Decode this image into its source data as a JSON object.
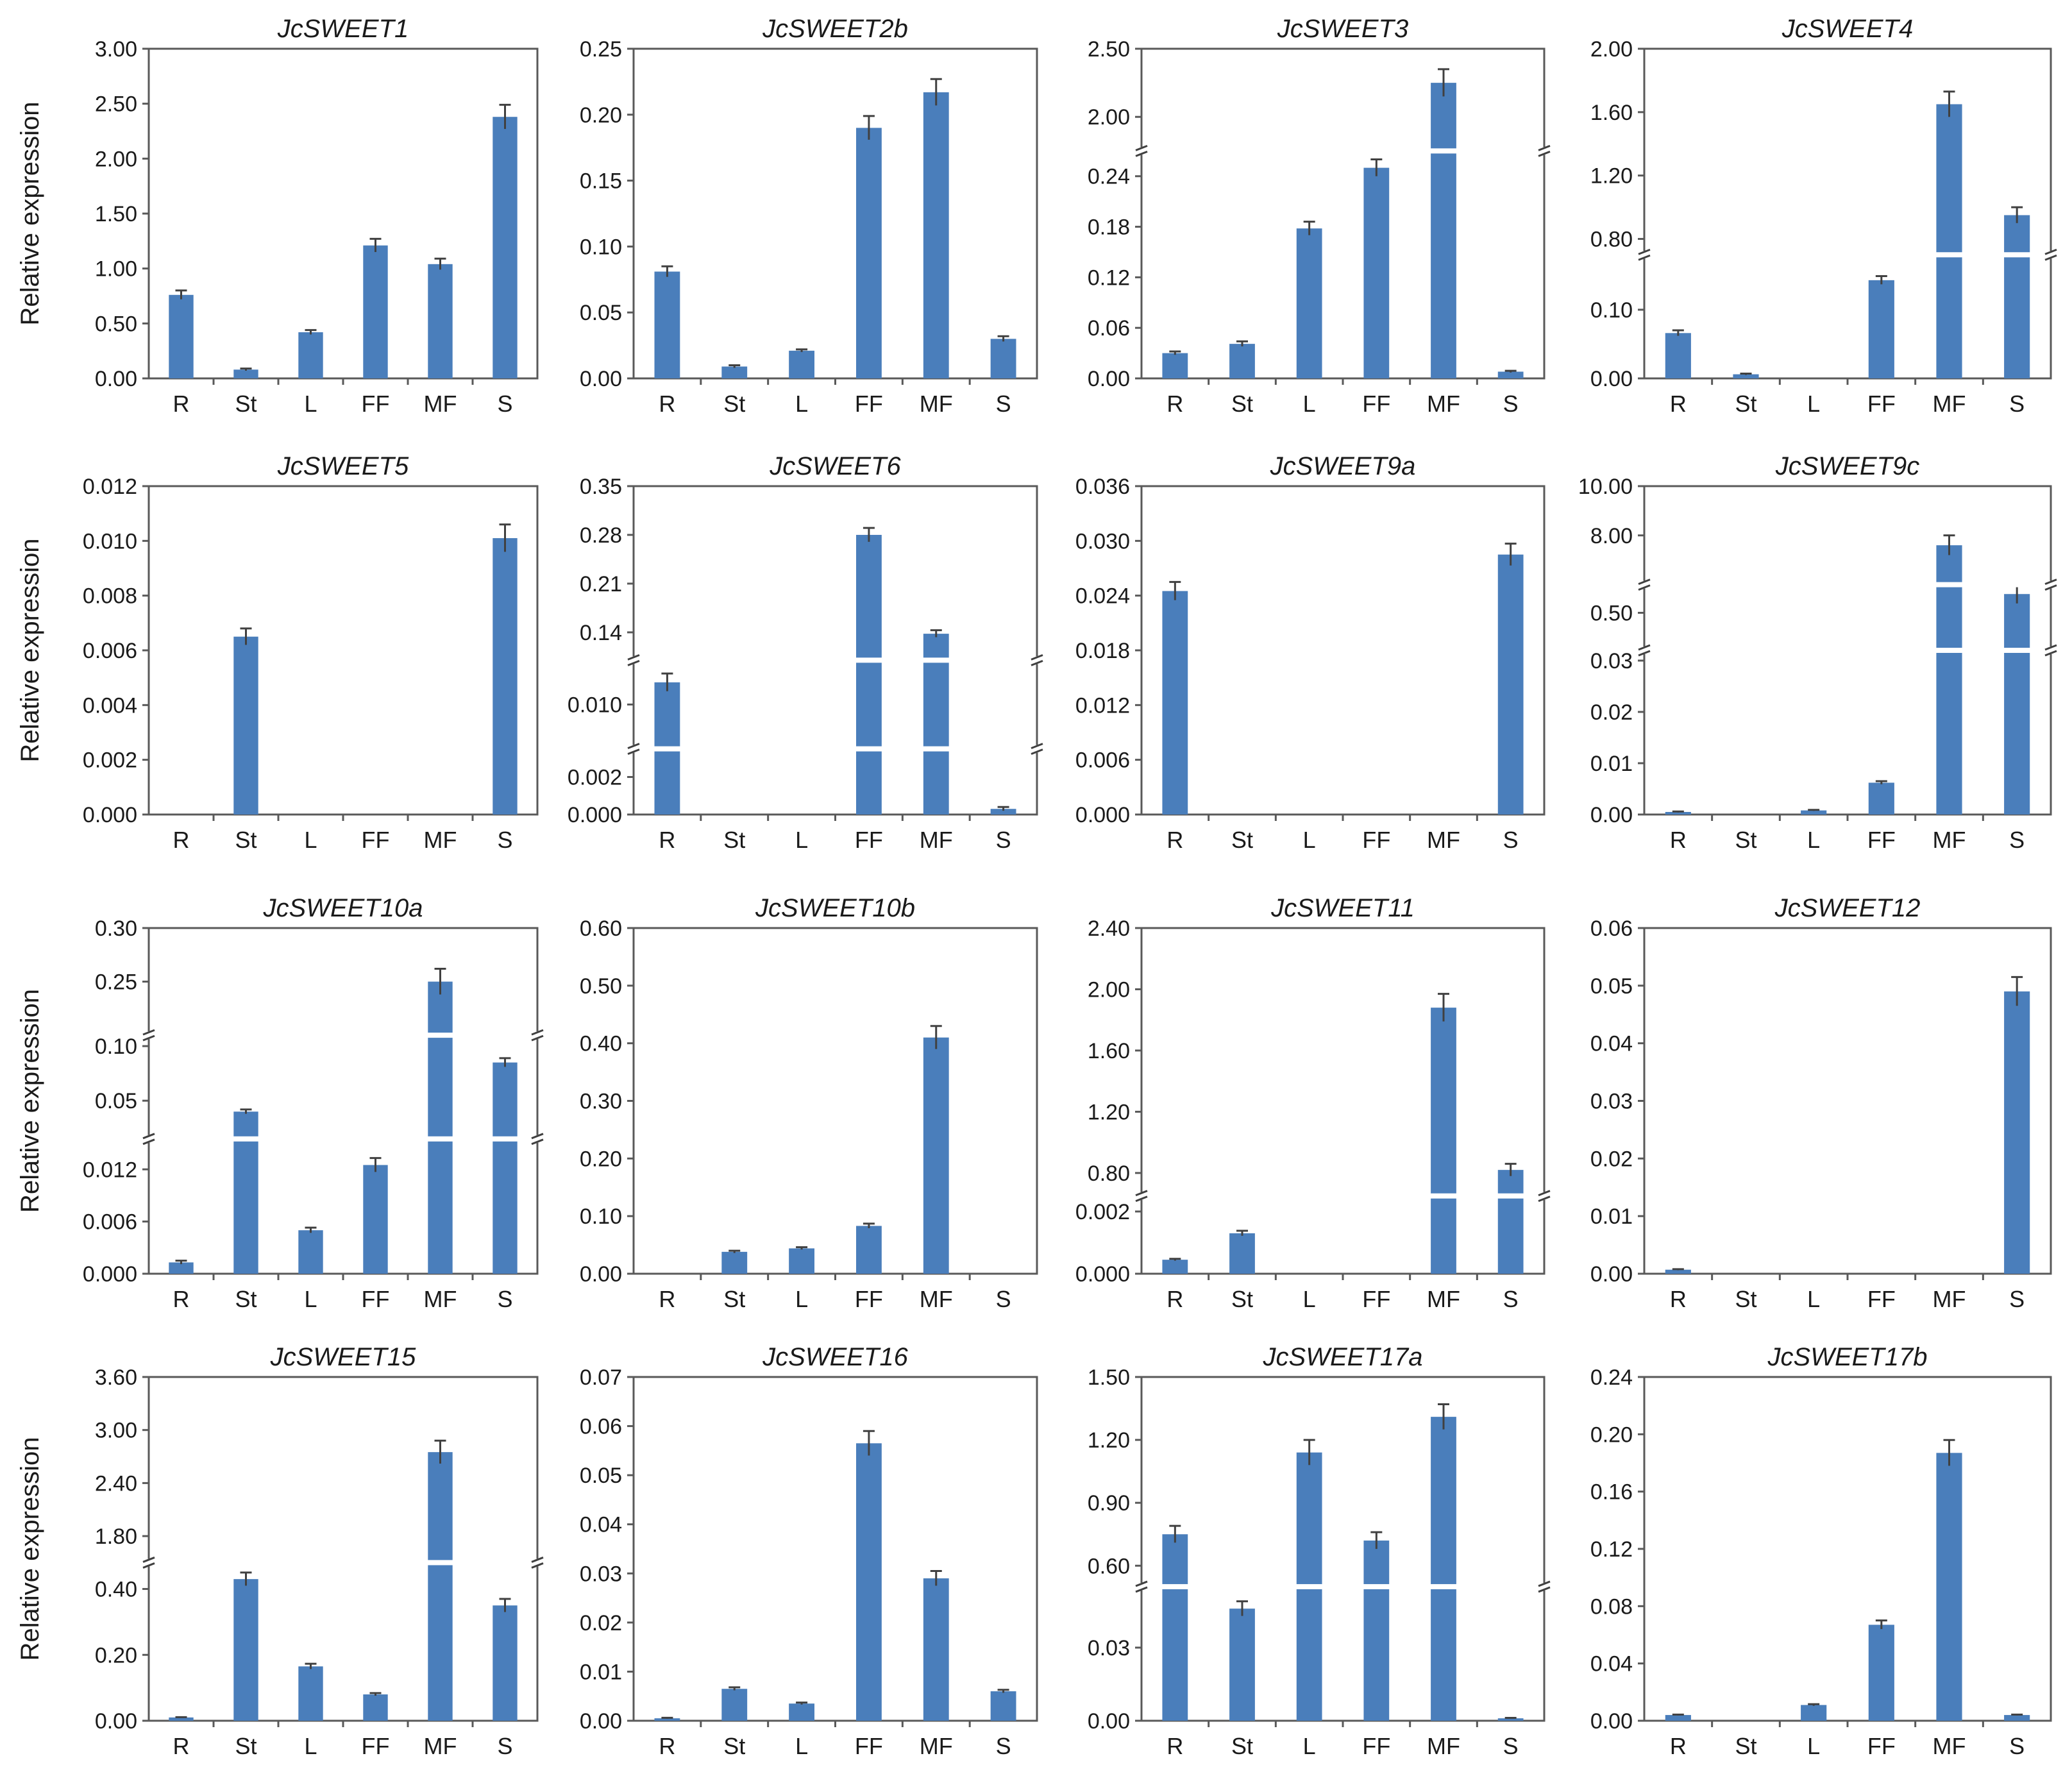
{
  "ylabel": "Relative expression",
  "colors": {
    "bar": "#4a7ebb",
    "axis": "#595959",
    "error": "#404040"
  },
  "chart_data": [
    {
      "type": "bar",
      "title": "JcSWEET1",
      "categories": [
        "R",
        "St",
        "L",
        "FF",
        "MF",
        "S"
      ],
      "ylim": [
        0,
        3
      ],
      "yticks": [
        {
          "v": 0,
          "t": "0.00"
        },
        {
          "v": 0.5,
          "t": "0.50"
        },
        {
          "v": 1,
          "t": "1.00"
        },
        {
          "v": 1.5,
          "t": "1.50"
        },
        {
          "v": 2,
          "t": "2.00"
        },
        {
          "v": 2.5,
          "t": "2.50"
        },
        {
          "v": 3,
          "t": "3.00"
        }
      ],
      "values": [
        0.76,
        0.08,
        0.42,
        1.21,
        1.04,
        2.38
      ],
      "errors": [
        0.04,
        0.01,
        0.02,
        0.06,
        0.05,
        0.11
      ],
      "segments": null
    },
    {
      "type": "bar",
      "title": "JcSWEET2b",
      "categories": [
        "R",
        "St",
        "L",
        "FF",
        "MF",
        "S"
      ],
      "ylim": [
        0,
        0.25
      ],
      "yticks": [
        {
          "v": 0,
          "t": "0.00"
        },
        {
          "v": 0.05,
          "t": "0.05"
        },
        {
          "v": 0.1,
          "t": "0.10"
        },
        {
          "v": 0.15,
          "t": "0.15"
        },
        {
          "v": 0.2,
          "t": "0.20"
        },
        {
          "v": 0.25,
          "t": "0.25"
        }
      ],
      "values": [
        0.081,
        0.009,
        0.021,
        0.19,
        0.217,
        0.03
      ],
      "errors": [
        0.004,
        0.001,
        0.001,
        0.009,
        0.01,
        0.002
      ],
      "segments": null
    },
    {
      "type": "bar",
      "title": "JcSWEET3",
      "categories": [
        "R",
        "St",
        "L",
        "FF",
        "MF",
        "S"
      ],
      "yticks": [
        {
          "v": 0,
          "t": "0.00"
        },
        {
          "v": 0.06,
          "t": "0.06"
        },
        {
          "v": 0.12,
          "t": "0.12"
        },
        {
          "v": 0.18,
          "t": "0.18"
        },
        {
          "v": 0.24,
          "t": "0.24"
        },
        {
          "v": 2,
          "t": "2.00"
        },
        {
          "v": 2.5,
          "t": "2.50"
        }
      ],
      "values": [
        0.03,
        0.041,
        0.178,
        0.25,
        2.25,
        0.008
      ],
      "errors": [
        0.002,
        0.003,
        0.008,
        0.01,
        0.1,
        0.001
      ],
      "segments": [
        {
          "lo": 0,
          "hi": 0.27,
          "f0": 0,
          "f1": 0.69
        },
        {
          "lo": 1.75,
          "hi": 2.5,
          "f0": 0.69,
          "f1": 1
        }
      ]
    },
    {
      "type": "bar",
      "title": "JcSWEET4",
      "categories": [
        "R",
        "St",
        "L",
        "FF",
        "MF",
        "S"
      ],
      "yticks": [
        {
          "v": 0,
          "t": "0.00"
        },
        {
          "v": 0.1,
          "t": "0.10"
        },
        {
          "v": 0.8,
          "t": "0.80"
        },
        {
          "v": 1.2,
          "t": "1.20"
        },
        {
          "v": 1.6,
          "t": "1.60"
        },
        {
          "v": 2,
          "t": "2.00"
        }
      ],
      "values": [
        0.066,
        0.006,
        0,
        0.143,
        1.65,
        0.95
      ],
      "errors": [
        0.004,
        0.001,
        0,
        0.006,
        0.08,
        0.05
      ],
      "segments": [
        {
          "lo": 0,
          "hi": 0.18,
          "f0": 0,
          "f1": 0.375
        },
        {
          "lo": 0.7,
          "hi": 2,
          "f0": 0.375,
          "f1": 1
        }
      ]
    },
    {
      "type": "bar",
      "title": "JcSWEET5",
      "categories": [
        "R",
        "St",
        "L",
        "FF",
        "MF",
        "S"
      ],
      "ylim": [
        0,
        0.012
      ],
      "yticks": [
        {
          "v": 0,
          "t": "0.000"
        },
        {
          "v": 0.002,
          "t": "0.002"
        },
        {
          "v": 0.004,
          "t": "0.004"
        },
        {
          "v": 0.006,
          "t": "0.006"
        },
        {
          "v": 0.008,
          "t": "0.008"
        },
        {
          "v": 0.01,
          "t": "0.010"
        },
        {
          "v": 0.012,
          "t": "0.012"
        }
      ],
      "values": [
        0,
        0.0065,
        0,
        0,
        0,
        0.0101
      ],
      "errors": [
        0,
        0.0003,
        0,
        0,
        0,
        0.0005
      ],
      "segments": null
    },
    {
      "type": "bar",
      "title": "JcSWEET6",
      "categories": [
        "R",
        "St",
        "L",
        "FF",
        "MF",
        "S"
      ],
      "yticks": [
        {
          "v": 0,
          "t": "0.000"
        },
        {
          "v": 0.002,
          "t": "0.002"
        },
        {
          "v": 0.01,
          "t": "0.010"
        },
        {
          "v": 0.14,
          "t": "0.14"
        },
        {
          "v": 0.21,
          "t": "0.21"
        },
        {
          "v": 0.28,
          "t": "0.28"
        },
        {
          "v": 0.35,
          "t": "0.35"
        }
      ],
      "values": [
        0.012,
        0,
        0,
        0.28,
        0.138,
        0.0003
      ],
      "errors": [
        0.0008,
        0,
        0,
        0.01,
        0.005,
        0.0001
      ],
      "segments": [
        {
          "lo": 0,
          "hi": 0.0035,
          "f0": 0,
          "f1": 0.2
        },
        {
          "lo": 0.006,
          "hi": 0.014,
          "f0": 0.2,
          "f1": 0.47
        },
        {
          "lo": 0.1,
          "hi": 0.35,
          "f0": 0.47,
          "f1": 1
        }
      ]
    },
    {
      "type": "bar",
      "title": "JcSWEET9a",
      "categories": [
        "R",
        "St",
        "L",
        "FF",
        "MF",
        "S"
      ],
      "ylim": [
        0,
        0.036
      ],
      "yticks": [
        {
          "v": 0,
          "t": "0.000"
        },
        {
          "v": 0.006,
          "t": "0.006"
        },
        {
          "v": 0.012,
          "t": "0.012"
        },
        {
          "v": 0.018,
          "t": "0.018"
        },
        {
          "v": 0.024,
          "t": "0.024"
        },
        {
          "v": 0.03,
          "t": "0.030"
        },
        {
          "v": 0.036,
          "t": "0.036"
        }
      ],
      "values": [
        0.0245,
        0,
        0,
        0,
        0,
        0.0285
      ],
      "errors": [
        0.001,
        0,
        0,
        0,
        0,
        0.0012
      ],
      "segments": null
    },
    {
      "type": "bar",
      "title": "JcSWEET9c",
      "categories": [
        "R",
        "St",
        "L",
        "FF",
        "MF",
        "S"
      ],
      "yticks": [
        {
          "v": 0,
          "t": "0.00"
        },
        {
          "v": 0.01,
          "t": "0.01"
        },
        {
          "v": 0.02,
          "t": "0.02"
        },
        {
          "v": 0.03,
          "t": "0.03"
        },
        {
          "v": 0.5,
          "t": "0.50"
        },
        {
          "v": 8,
          "t": "8.00"
        },
        {
          "v": 10,
          "t": "10.00"
        }
      ],
      "values": [
        0.0005,
        0,
        0.0008,
        0.0062,
        7.6,
        0.6
      ],
      "errors": [
        0.0001,
        0,
        0.0001,
        0.0003,
        0.4,
        0.05
      ],
      "segments": [
        {
          "lo": 0,
          "hi": 0.032,
          "f0": 0,
          "f1": 0.5
        },
        {
          "lo": 0.3,
          "hi": 0.65,
          "f0": 0.5,
          "f1": 0.7
        },
        {
          "lo": 6,
          "hi": 10,
          "f0": 0.7,
          "f1": 1
        }
      ]
    },
    {
      "type": "bar",
      "title": "JcSWEET10a",
      "categories": [
        "R",
        "St",
        "L",
        "FF",
        "MF",
        "S"
      ],
      "yticks": [
        {
          "v": 0,
          "t": "0.000"
        },
        {
          "v": 0.006,
          "t": "0.006"
        },
        {
          "v": 0.012,
          "t": "0.012"
        },
        {
          "v": 0.05,
          "t": "0.05"
        },
        {
          "v": 0.1,
          "t": "0.10"
        },
        {
          "v": 0.25,
          "t": "0.25"
        },
        {
          "v": 0.3,
          "t": "0.30"
        }
      ],
      "values": [
        0.0013,
        0.04,
        0.005,
        0.0125,
        0.25,
        0.085
      ],
      "errors": [
        0.0002,
        0.002,
        0.0003,
        0.0008,
        0.012,
        0.004
      ],
      "segments": [
        {
          "lo": 0,
          "hi": 0.0155,
          "f0": 0,
          "f1": 0.39
        },
        {
          "lo": 0.015,
          "hi": 0.11,
          "f0": 0.39,
          "f1": 0.69
        },
        {
          "lo": 0.2,
          "hi": 0.3,
          "f0": 0.69,
          "f1": 1
        }
      ]
    },
    {
      "type": "bar",
      "title": "JcSWEET10b",
      "categories": [
        "R",
        "St",
        "L",
        "FF",
        "MF",
        "S"
      ],
      "ylim": [
        0,
        0.6
      ],
      "yticks": [
        {
          "v": 0,
          "t": "0.00"
        },
        {
          "v": 0.1,
          "t": "0.10"
        },
        {
          "v": 0.2,
          "t": "0.20"
        },
        {
          "v": 0.3,
          "t": "0.30"
        },
        {
          "v": 0.4,
          "t": "0.40"
        },
        {
          "v": 0.5,
          "t": "0.50"
        },
        {
          "v": 0.6,
          "t": "0.60"
        }
      ],
      "values": [
        0,
        0.038,
        0.044,
        0.083,
        0.41,
        0
      ],
      "errors": [
        0,
        0.002,
        0.002,
        0.004,
        0.02,
        0
      ],
      "segments": null
    },
    {
      "type": "bar",
      "title": "JcSWEET11",
      "categories": [
        "R",
        "St",
        "L",
        "FF",
        "MF",
        "S"
      ],
      "yticks": [
        {
          "v": 0,
          "t": "0.000"
        },
        {
          "v": 0.002,
          "t": "0.002"
        },
        {
          "v": 0.8,
          "t": "0.80"
        },
        {
          "v": 1.2,
          "t": "1.20"
        },
        {
          "v": 1.6,
          "t": "1.60"
        },
        {
          "v": 2,
          "t": "2.00"
        },
        {
          "v": 2.4,
          "t": "2.40"
        }
      ],
      "values": [
        0.00045,
        0.0013,
        0,
        0,
        1.88,
        0.82
      ],
      "errors": [
        3e-05,
        8e-05,
        0,
        0,
        0.09,
        0.04
      ],
      "segments": [
        {
          "lo": 0,
          "hi": 0.0025,
          "f0": 0,
          "f1": 0.225
        },
        {
          "lo": 0.65,
          "hi": 2.4,
          "f0": 0.225,
          "f1": 1
        }
      ]
    },
    {
      "type": "bar",
      "title": "JcSWEET12",
      "categories": [
        "R",
        "St",
        "L",
        "FF",
        "MF",
        "S"
      ],
      "ylim": [
        0,
        0.06
      ],
      "yticks": [
        {
          "v": 0,
          "t": "0.00"
        },
        {
          "v": 0.01,
          "t": "0.01"
        },
        {
          "v": 0.02,
          "t": "0.02"
        },
        {
          "v": 0.03,
          "t": "0.03"
        },
        {
          "v": 0.04,
          "t": "0.04"
        },
        {
          "v": 0.05,
          "t": "0.05"
        },
        {
          "v": 0.06,
          "t": "0.06"
        }
      ],
      "values": [
        0.0007,
        0,
        0,
        0,
        0,
        0.049
      ],
      "errors": [
        0.0001,
        0,
        0,
        0,
        0,
        0.0025
      ],
      "segments": null
    },
    {
      "type": "bar",
      "title": "JcSWEET15",
      "categories": [
        "R",
        "St",
        "L",
        "FF",
        "MF",
        "S"
      ],
      "yticks": [
        {
          "v": 0,
          "t": "0.00"
        },
        {
          "v": 0.2,
          "t": "0.20"
        },
        {
          "v": 0.4,
          "t": "0.40"
        },
        {
          "v": 1.8,
          "t": "1.80"
        },
        {
          "v": 2.4,
          "t": "2.40"
        },
        {
          "v": 3,
          "t": "3.00"
        },
        {
          "v": 3.6,
          "t": "3.60"
        }
      ],
      "values": [
        0.01,
        0.43,
        0.165,
        0.08,
        2.75,
        0.35
      ],
      "errors": [
        0.001,
        0.02,
        0.008,
        0.004,
        0.13,
        0.02
      ],
      "segments": [
        {
          "lo": 0,
          "hi": 0.48,
          "f0": 0,
          "f1": 0.46
        },
        {
          "lo": 1.5,
          "hi": 3.6,
          "f0": 0.46,
          "f1": 1
        }
      ]
    },
    {
      "type": "bar",
      "title": "JcSWEET16",
      "categories": [
        "R",
        "St",
        "L",
        "FF",
        "MF",
        "S"
      ],
      "ylim": [
        0,
        0.07
      ],
      "yticks": [
        {
          "v": 0,
          "t": "0.00"
        },
        {
          "v": 0.01,
          "t": "0.01"
        },
        {
          "v": 0.02,
          "t": "0.02"
        },
        {
          "v": 0.03,
          "t": "0.03"
        },
        {
          "v": 0.04,
          "t": "0.04"
        },
        {
          "v": 0.05,
          "t": "0.05"
        },
        {
          "v": 0.06,
          "t": "0.06"
        },
        {
          "v": 0.07,
          "t": "0.07"
        }
      ],
      "values": [
        0.0005,
        0.0065,
        0.0035,
        0.0565,
        0.029,
        0.006
      ],
      "errors": [
        0.0001,
        0.0003,
        0.0002,
        0.0025,
        0.0015,
        0.0003
      ],
      "segments": null
    },
    {
      "type": "bar",
      "title": "JcSWEET17a",
      "categories": [
        "R",
        "St",
        "L",
        "FF",
        "MF",
        "S"
      ],
      "yticks": [
        {
          "v": 0,
          "t": "0.00"
        },
        {
          "v": 0.03,
          "t": "0.03"
        },
        {
          "v": 0.6,
          "t": "0.60"
        },
        {
          "v": 0.9,
          "t": "0.90"
        },
        {
          "v": 1.2,
          "t": "1.20"
        },
        {
          "v": 1.5,
          "t": "1.50"
        }
      ],
      "values": [
        0.75,
        0.046,
        1.14,
        0.72,
        1.31,
        0.001
      ],
      "errors": [
        0.04,
        0.003,
        0.06,
        0.04,
        0.06,
        0.0002
      ],
      "segments": [
        {
          "lo": 0,
          "hi": 0.055,
          "f0": 0,
          "f1": 0.39
        },
        {
          "lo": 0.5,
          "hi": 1.5,
          "f0": 0.39,
          "f1": 1
        }
      ]
    },
    {
      "type": "bar",
      "title": "JcSWEET17b",
      "categories": [
        "R",
        "St",
        "L",
        "FF",
        "MF",
        "S"
      ],
      "ylim": [
        0,
        0.24
      ],
      "yticks": [
        {
          "v": 0,
          "t": "0.00"
        },
        {
          "v": 0.04,
          "t": "0.04"
        },
        {
          "v": 0.08,
          "t": "0.08"
        },
        {
          "v": 0.12,
          "t": "0.12"
        },
        {
          "v": 0.16,
          "t": "0.16"
        },
        {
          "v": 0.2,
          "t": "0.20"
        },
        {
          "v": 0.24,
          "t": "0.24"
        }
      ],
      "values": [
        0.004,
        0,
        0.011,
        0.067,
        0.187,
        0.004
      ],
      "errors": [
        0.0003,
        0,
        0.0006,
        0.003,
        0.009,
        0.0003
      ],
      "segments": null
    }
  ]
}
